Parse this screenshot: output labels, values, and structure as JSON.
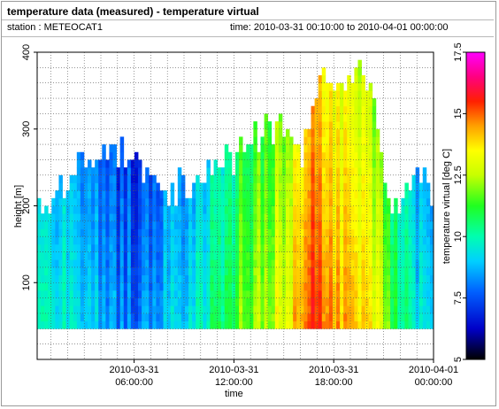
{
  "header": {
    "title": "temperature data (measured) - temperature virtual",
    "station": "station : METEOCAT1",
    "time_range": "time: 2010-03-31 00:10:00 to 2010-04-01 00:00:00"
  },
  "chart_data": {
    "type": "heatmap",
    "title": "temperature data (measured) - temperature virtual",
    "xlabel": "time",
    "ylabel": "height [m]",
    "colorbar_label": "temperature virtual [deg C]",
    "x_ticks": [
      {
        "t": 6,
        "line1": "2010-03-31",
        "line2": "06:00:00"
      },
      {
        "t": 12,
        "line1": "2010-03-31",
        "line2": "12:00:00"
      },
      {
        "t": 18,
        "line1": "2010-03-31",
        "line2": "18:00:00"
      },
      {
        "t": 24,
        "line1": "2010-04-01",
        "line2": "00:00:00"
      }
    ],
    "xlim_hours": [
      0.17,
      24
    ],
    "ylim": [
      0,
      400
    ],
    "y_ticks": [
      100,
      200,
      300,
      400
    ],
    "color_range": [
      5,
      17.5
    ],
    "colorbar_ticks": [
      5,
      7.5,
      10,
      12.5,
      15,
      17.5
    ],
    "grid": true,
    "height_bins_start": 40,
    "height_bin_size": 10,
    "temperature_profiles_approx": {
      "description_hours": [
        0.2,
        2,
        4,
        6,
        8,
        10,
        12,
        14,
        15,
        16,
        16.5,
        17,
        18,
        19,
        20,
        21,
        22,
        23,
        24
      ],
      "surface_temp": [
        10,
        10,
        8.5,
        8,
        9,
        10,
        11.5,
        12.5,
        13.5,
        14.5,
        15.5,
        15,
        14,
        14.5,
        13.5,
        12,
        10.5,
        9.5,
        9
      ],
      "top_height_m": [
        200,
        230,
        280,
        250,
        210,
        240,
        260,
        300,
        290,
        240,
        330,
        360,
        360,
        360,
        360,
        200,
        200,
        230,
        220
      ]
    },
    "legend_placement": "right colorbar"
  }
}
